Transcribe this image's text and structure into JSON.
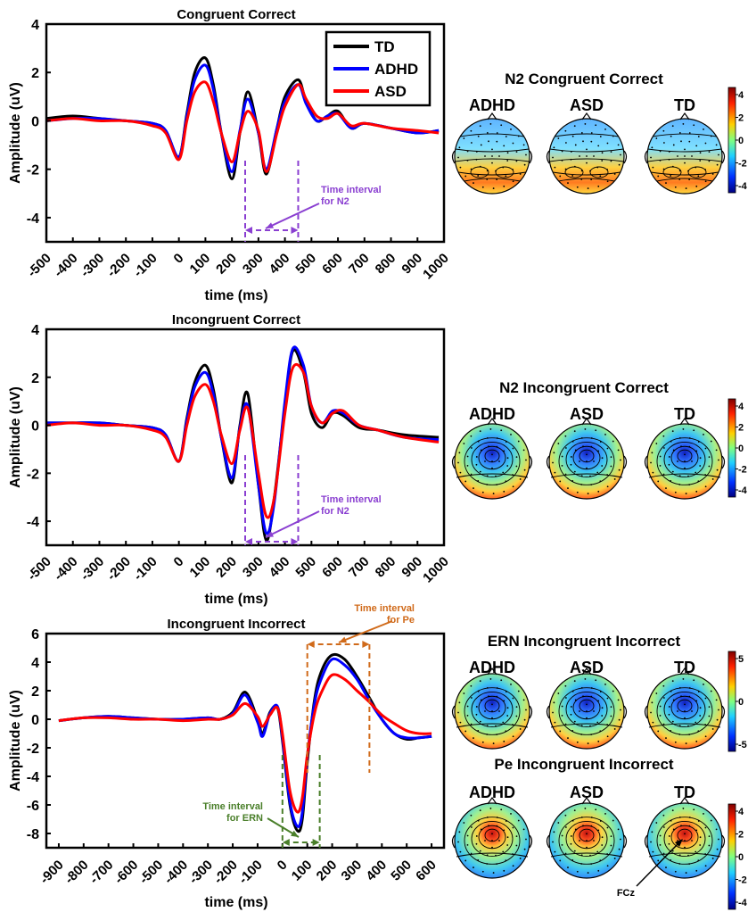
{
  "colors": {
    "TD": "#000000",
    "ADHD": "#0000ff",
    "ASD": "#ff0000",
    "n2_interval": "#8a3fd1",
    "pe_interval": "#d06a1a",
    "ern_interval": "#4a7f2a"
  },
  "colorbar_labels": {
    "n2cc": [
      "4",
      "2",
      "0",
      "-2",
      "-4"
    ],
    "n2ic": [
      "4",
      "2",
      "0",
      "-2",
      "-4"
    ],
    "ern": [
      "5",
      "0",
      "-5"
    ],
    "pe": [
      "4",
      "2",
      "0",
      "-2",
      "-4"
    ]
  },
  "topo_group_labels": [
    "ADHD",
    "ASD",
    "TD"
  ],
  "topo_titles": {
    "n2cc": "N2 Congruent Correct",
    "n2ic": "N2 Incongruent Correct",
    "ern": "ERN Incongruent Incorrect",
    "pe": "Pe Incongruent Incorrect"
  },
  "electrode_label": "FCz",
  "chart_data": [
    {
      "type": "line",
      "title": "Congruent Correct",
      "xlabel": "time (ms)",
      "ylabel": "Amplitude (uV)",
      "xlim": [
        -500,
        1000
      ],
      "ylim": [
        -5,
        4
      ],
      "xticks": [
        -500,
        -400,
        -300,
        -200,
        -100,
        0,
        100,
        200,
        300,
        400,
        500,
        600,
        700,
        800,
        900,
        1000
      ],
      "yticks": [
        4,
        2,
        0,
        -2,
        -4
      ],
      "legend": [
        "TD",
        "ADHD",
        "ASD"
      ],
      "legend_position": "top-right",
      "annotation": {
        "text": [
          "Time interval",
          "for N2"
        ],
        "interval": [
          250,
          450
        ]
      },
      "series": [
        {
          "name": "TD",
          "x": [
            -500,
            -400,
            -300,
            -200,
            -100,
            -50,
            0,
            30,
            60,
            100,
            130,
            160,
            200,
            230,
            260,
            300,
            330,
            370,
            400,
            450,
            480,
            520,
            560,
            600,
            650,
            700,
            800,
            900,
            980
          ],
          "y": [
            0.1,
            0.2,
            0.1,
            0.0,
            -0.1,
            -0.4,
            -1.5,
            0.3,
            2.0,
            2.6,
            1.5,
            -0.5,
            -2.4,
            -0.5,
            1.2,
            -0.5,
            -2.2,
            -0.3,
            1.0,
            1.7,
            0.8,
            0.0,
            0.2,
            0.4,
            -0.3,
            -0.1,
            -0.3,
            -0.5,
            -0.4
          ]
        },
        {
          "name": "ADHD",
          "x": [
            -500,
            -400,
            -300,
            -200,
            -100,
            -50,
            0,
            30,
            60,
            100,
            130,
            160,
            200,
            230,
            260,
            300,
            330,
            370,
            400,
            450,
            480,
            520,
            560,
            600,
            650,
            700,
            800,
            900,
            980
          ],
          "y": [
            0.0,
            0.1,
            0.1,
            0.0,
            -0.1,
            -0.4,
            -1.5,
            0.2,
            1.7,
            2.3,
            1.3,
            -0.5,
            -2.1,
            -0.4,
            0.9,
            -0.5,
            -2.0,
            -0.3,
            0.8,
            1.5,
            0.7,
            0.0,
            0.2,
            0.3,
            -0.3,
            -0.1,
            -0.3,
            -0.5,
            -0.4
          ]
        },
        {
          "name": "ASD",
          "x": [
            -500,
            -400,
            -300,
            -200,
            -100,
            -50,
            0,
            30,
            60,
            100,
            130,
            160,
            200,
            230,
            260,
            300,
            330,
            370,
            400,
            450,
            480,
            520,
            560,
            600,
            650,
            700,
            800,
            900,
            980
          ],
          "y": [
            0.0,
            0.1,
            0.0,
            0.0,
            -0.2,
            -0.5,
            -1.6,
            0.0,
            1.2,
            1.6,
            0.8,
            -0.5,
            -1.7,
            -0.5,
            0.4,
            -0.4,
            -2.1,
            -0.5,
            0.6,
            1.5,
            0.9,
            0.2,
            0.1,
            0.3,
            -0.2,
            -0.1,
            -0.3,
            -0.4,
            -0.5
          ]
        }
      ]
    },
    {
      "type": "line",
      "title": "Incongruent Correct",
      "xlabel": "time (ms)",
      "ylabel": "Amplitude (uV)",
      "xlim": [
        -500,
        1000
      ],
      "ylim": [
        -5,
        4
      ],
      "xticks": [
        -500,
        -400,
        -300,
        -200,
        -100,
        0,
        100,
        200,
        300,
        400,
        500,
        600,
        700,
        800,
        900,
        1000
      ],
      "yticks": [
        4,
        2,
        0,
        -2,
        -4
      ],
      "annotation": {
        "text": [
          "Time interval",
          "for N2"
        ],
        "interval": [
          250,
          450
        ]
      },
      "series": [
        {
          "name": "TD",
          "x": [
            -500,
            -400,
            -300,
            -200,
            -100,
            -50,
            0,
            30,
            60,
            100,
            130,
            160,
            200,
            230,
            260,
            300,
            330,
            360,
            400,
            430,
            470,
            500,
            540,
            580,
            620,
            680,
            750,
            850,
            980
          ],
          "y": [
            0.1,
            0.1,
            0.1,
            0.0,
            -0.1,
            -0.4,
            -1.5,
            0.3,
            1.8,
            2.5,
            1.5,
            -0.5,
            -2.4,
            0.0,
            1.3,
            -2.5,
            -4.8,
            -3.0,
            0.8,
            3.1,
            2.2,
            0.5,
            -0.1,
            0.5,
            0.4,
            -0.1,
            -0.2,
            -0.4,
            -0.5
          ]
        },
        {
          "name": "ADHD",
          "x": [
            -500,
            -400,
            -300,
            -200,
            -100,
            -50,
            0,
            30,
            60,
            100,
            130,
            160,
            200,
            230,
            260,
            300,
            330,
            360,
            400,
            430,
            470,
            500,
            540,
            580,
            620,
            680,
            750,
            850,
            980
          ],
          "y": [
            0.1,
            0.1,
            0.1,
            0.0,
            -0.1,
            -0.4,
            -1.5,
            0.2,
            1.6,
            2.2,
            1.3,
            -0.5,
            -2.2,
            -0.1,
            0.8,
            -2.5,
            -4.5,
            -3.2,
            1.0,
            3.2,
            2.5,
            0.8,
            0.1,
            0.6,
            0.5,
            0.0,
            -0.2,
            -0.5,
            -0.6
          ]
        },
        {
          "name": "ASD",
          "x": [
            -500,
            -400,
            -300,
            -200,
            -100,
            -50,
            0,
            30,
            60,
            100,
            130,
            160,
            200,
            230,
            260,
            300,
            330,
            360,
            400,
            430,
            470,
            500,
            540,
            580,
            620,
            680,
            750,
            850,
            980
          ],
          "y": [
            0.0,
            0.1,
            0.0,
            0.0,
            -0.2,
            -0.5,
            -1.5,
            0.0,
            1.2,
            1.7,
            1.0,
            -0.4,
            -1.6,
            -0.2,
            0.7,
            -2.0,
            -3.8,
            -3.0,
            0.5,
            2.4,
            2.2,
            0.8,
            0.1,
            0.5,
            0.6,
            0.0,
            -0.2,
            -0.5,
            -0.7
          ]
        }
      ]
    },
    {
      "type": "line",
      "title": "Incongruent Incorrect",
      "xlabel": "time (ms)",
      "ylabel": "Amplitude (uV)",
      "xlim": [
        -950,
        650
      ],
      "ylim": [
        -9,
        6
      ],
      "xticks": [
        -900,
        -800,
        -700,
        -600,
        -500,
        -400,
        -300,
        -200,
        -100,
        0,
        100,
        200,
        300,
        400,
        500,
        600
      ],
      "yticks": [
        6,
        4,
        2,
        0,
        -2,
        -4,
        -6,
        -8
      ],
      "annotations": [
        {
          "text": [
            "Time interval",
            "for Pe"
          ],
          "interval": [
            100,
            350
          ]
        },
        {
          "text": [
            "Time interval",
            "for ERN"
          ],
          "interval": [
            0,
            150
          ]
        }
      ],
      "series": [
        {
          "name": "TD",
          "x": [
            -900,
            -800,
            -700,
            -600,
            -500,
            -400,
            -300,
            -250,
            -200,
            -150,
            -100,
            -80,
            -50,
            -20,
            0,
            30,
            60,
            80,
            100,
            130,
            160,
            200,
            250,
            300,
            350,
            400,
            450,
            500,
            550,
            600
          ],
          "y": [
            -0.1,
            0.1,
            0.2,
            0.1,
            0.0,
            0.0,
            0.1,
            0.0,
            0.5,
            1.9,
            0.0,
            -1.0,
            0.5,
            0.8,
            -1.5,
            -6.0,
            -7.8,
            -7.0,
            -3.0,
            1.5,
            3.5,
            4.5,
            4.2,
            3.0,
            1.5,
            0.0,
            -1.0,
            -1.4,
            -1.3,
            -1.2
          ]
        },
        {
          "name": "ADHD",
          "x": [
            -900,
            -800,
            -700,
            -600,
            -500,
            -400,
            -300,
            -250,
            -200,
            -150,
            -100,
            -80,
            -50,
            -20,
            0,
            30,
            60,
            80,
            100,
            130,
            160,
            200,
            250,
            300,
            350,
            400,
            450,
            500,
            550,
            600
          ],
          "y": [
            -0.1,
            0.1,
            0.2,
            0.1,
            0.0,
            0.0,
            0.1,
            0.0,
            0.4,
            1.7,
            -0.2,
            -1.2,
            0.4,
            0.9,
            -1.3,
            -5.8,
            -7.5,
            -6.5,
            -2.6,
            1.2,
            3.0,
            4.2,
            3.8,
            2.8,
            1.3,
            0.0,
            -1.0,
            -1.3,
            -1.3,
            -1.2
          ]
        },
        {
          "name": "ASD",
          "x": [
            -900,
            -800,
            -700,
            -600,
            -500,
            -400,
            -300,
            -250,
            -200,
            -150,
            -100,
            -80,
            -50,
            -20,
            0,
            30,
            60,
            80,
            100,
            130,
            160,
            200,
            250,
            300,
            350,
            400,
            450,
            500,
            550,
            600
          ],
          "y": [
            -0.1,
            0.1,
            0.1,
            0.0,
            0.0,
            -0.1,
            0.0,
            0.0,
            0.3,
            1.1,
            0.2,
            -0.5,
            0.3,
            0.8,
            -1.0,
            -5.0,
            -6.5,
            -5.5,
            -2.5,
            0.5,
            2.0,
            3.1,
            2.8,
            2.0,
            1.2,
            0.3,
            -0.3,
            -0.8,
            -1.0,
            -1.0
          ]
        }
      ]
    }
  ]
}
